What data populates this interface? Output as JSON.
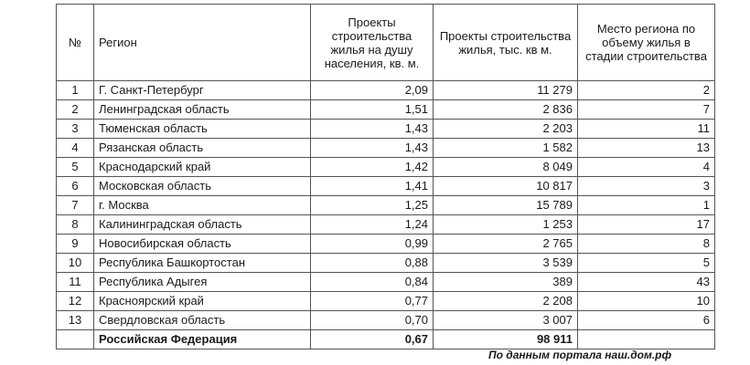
{
  "header": {
    "num": "№",
    "region": "Регион",
    "per_capita": "Проекты строительства жилья на душу населения, кв. м.",
    "total": "Проекты строительства жилья, тыс. кв м.",
    "place": "Место региона по объему жилья в стадии строительства"
  },
  "rows": [
    {
      "num": "1",
      "region": "Г. Санкт-Петербург",
      "per_capita": "2,09",
      "total": "11 279",
      "place": "2"
    },
    {
      "num": "2",
      "region": "Ленинградская область",
      "per_capita": "1,51",
      "total": "2 836",
      "place": "7"
    },
    {
      "num": "3",
      "region": "Тюменская область",
      "per_capita": "1,43",
      "total": "2 203",
      "place": "11"
    },
    {
      "num": "4",
      "region": "Рязанская область",
      "per_capita": "1,43",
      "total": "1 582",
      "place": "13"
    },
    {
      "num": "5",
      "region": "Краснодарский край",
      "per_capita": "1,42",
      "total": "8 049",
      "place": "4"
    },
    {
      "num": "6",
      "region": "Московская область",
      "per_capita": "1,41",
      "total": "10 817",
      "place": "3"
    },
    {
      "num": "7",
      "region": "г. Москва",
      "per_capita": "1,25",
      "total": "15 789",
      "place": "1"
    },
    {
      "num": "8",
      "region": "Калининградская область",
      "per_capita": "1,24",
      "total": "1 253",
      "place": "17"
    },
    {
      "num": "9",
      "region": "Новосибирская область",
      "per_capita": "0,99",
      "total": "2 765",
      "place": "8"
    },
    {
      "num": "10",
      "region": "Республика Башкортостан",
      "per_capita": "0,88",
      "total": "3 539",
      "place": "5"
    },
    {
      "num": "11",
      "region": "Республика Адыгея",
      "per_capita": "0,84",
      "total": "389",
      "place": "43"
    },
    {
      "num": "12",
      "region": "Красноярский край",
      "per_capita": "0,77",
      "total": "2 208",
      "place": "10"
    },
    {
      "num": "13",
      "region": "Свердловская область",
      "per_capita": "0,70",
      "total": "3 007",
      "place": "6"
    }
  ],
  "total_row": {
    "region": "Российская Федерация",
    "per_capita": "0,67",
    "total": "98 911"
  },
  "source": "По данным портала наш.дом.рф"
}
